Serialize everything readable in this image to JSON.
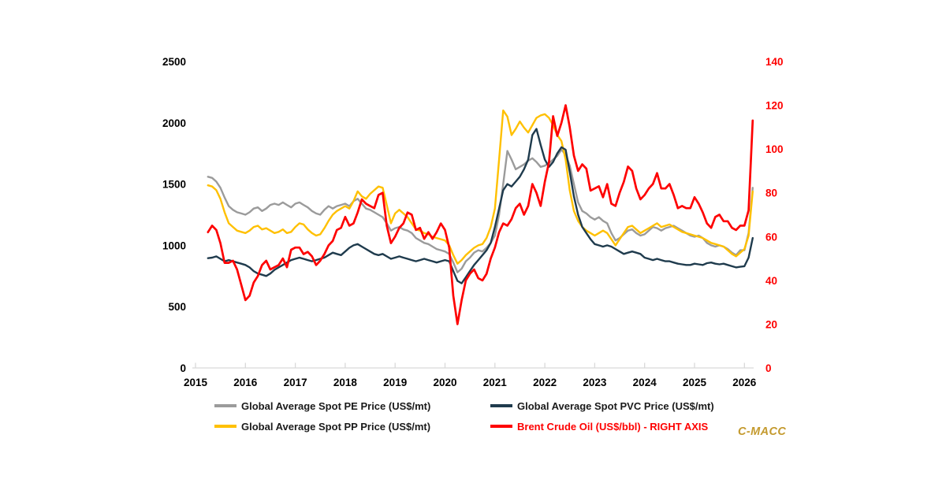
{
  "watermark": {
    "text": "C-MACC",
    "color": "#c49a2e"
  },
  "chart_data": {
    "type": "line",
    "title": "",
    "grid": false,
    "legend_position": "bottom",
    "x_start": 2015.25,
    "x_step": 0.083333,
    "x_ticks": [
      2015,
      2016,
      2017,
      2018,
      2019,
      2020,
      2021,
      2022,
      2023,
      2024,
      2025,
      2026
    ],
    "left_axis": {
      "ticks": [
        0,
        500,
        1000,
        1500,
        2000,
        2500
      ],
      "range": [
        0,
        2500
      ],
      "color": "#000000"
    },
    "right_axis": {
      "ticks": [
        0,
        20,
        40,
        60,
        80,
        100,
        120,
        140
      ],
      "range": [
        0,
        140
      ],
      "color": "#fe0000"
    },
    "axis_line_color": "#d9d9d9",
    "draw_order": [
      "pe",
      "pp",
      "pvc",
      "brent"
    ],
    "series": [
      {
        "id": "pe",
        "name": "Global Average Spot PE Price (US$/mt)",
        "axis": "left",
        "color": "#9b9b9b",
        "legend_text_color": "#1a1a1a",
        "values": [
          1560,
          1550,
          1520,
          1470,
          1390,
          1320,
          1290,
          1270,
          1260,
          1250,
          1270,
          1300,
          1310,
          1280,
          1300,
          1330,
          1340,
          1330,
          1350,
          1330,
          1310,
          1340,
          1350,
          1330,
          1310,
          1280,
          1260,
          1250,
          1290,
          1320,
          1300,
          1320,
          1330,
          1340,
          1320,
          1360,
          1380,
          1340,
          1300,
          1290,
          1270,
          1250,
          1230,
          1180,
          1120,
          1140,
          1150,
          1130,
          1120,
          1100,
          1060,
          1040,
          1020,
          1010,
          990,
          970,
          960,
          950,
          930,
          860,
          780,
          810,
          870,
          900,
          940,
          960,
          950,
          980,
          1020,
          1080,
          1250,
          1500,
          1770,
          1700,
          1620,
          1640,
          1660,
          1690,
          1710,
          1680,
          1640,
          1650,
          1670,
          1700,
          1730,
          1780,
          1740,
          1650,
          1500,
          1350,
          1280,
          1260,
          1230,
          1210,
          1230,
          1200,
          1180,
          1100,
          1040,
          1060,
          1090,
          1120,
          1130,
          1100,
          1080,
          1090,
          1120,
          1150,
          1140,
          1120,
          1140,
          1150,
          1160,
          1140,
          1120,
          1100,
          1080,
          1070,
          1080,
          1060,
          1020,
          1000,
          990,
          1000,
          990,
          970,
          940,
          920,
          960,
          960,
          1100,
          1470
        ]
      },
      {
        "id": "pvc",
        "name": "Global Average Spot PVC Price (US$/mt)",
        "axis": "left",
        "color": "#1f3b4d",
        "legend_text_color": "#1a1a1a",
        "values": [
          895,
          900,
          910,
          890,
          870,
          880,
          870,
          860,
          850,
          840,
          820,
          790,
          770,
          760,
          750,
          770,
          800,
          820,
          840,
          860,
          880,
          890,
          900,
          890,
          880,
          870,
          880,
          890,
          900,
          920,
          940,
          930,
          920,
          950,
          980,
          1000,
          1010,
          990,
          970,
          950,
          930,
          920,
          930,
          910,
          890,
          900,
          910,
          900,
          890,
          880,
          870,
          880,
          890,
          880,
          870,
          860,
          870,
          880,
          870,
          790,
          710,
          690,
          740,
          790,
          840,
          880,
          920,
          960,
          1020,
          1150,
          1300,
          1450,
          1500,
          1480,
          1520,
          1560,
          1620,
          1700,
          1900,
          1950,
          1820,
          1700,
          1640,
          1680,
          1750,
          1800,
          1780,
          1600,
          1400,
          1250,
          1150,
          1100,
          1050,
          1010,
          1000,
          990,
          1000,
          990,
          970,
          950,
          930,
          940,
          950,
          940,
          930,
          900,
          890,
          880,
          890,
          880,
          870,
          870,
          860,
          850,
          845,
          840,
          840,
          850,
          845,
          840,
          855,
          860,
          850,
          845,
          850,
          840,
          830,
          820,
          825,
          830,
          900,
          1060
        ]
      },
      {
        "id": "pp",
        "name": "Global Average Spot PP Price (US$/mt)",
        "axis": "left",
        "color": "#ffc000",
        "legend_text_color": "#1a1a1a",
        "values": [
          1490,
          1480,
          1450,
          1380,
          1270,
          1180,
          1150,
          1120,
          1110,
          1100,
          1120,
          1150,
          1160,
          1130,
          1140,
          1120,
          1100,
          1110,
          1130,
          1100,
          1110,
          1150,
          1180,
          1170,
          1130,
          1100,
          1080,
          1090,
          1140,
          1200,
          1250,
          1280,
          1300,
          1320,
          1300,
          1360,
          1440,
          1400,
          1380,
          1420,
          1450,
          1480,
          1470,
          1330,
          1180,
          1260,
          1290,
          1260,
          1230,
          1180,
          1130,
          1120,
          1100,
          1090,
          1070,
          1060,
          1050,
          1040,
          1000,
          920,
          850,
          880,
          920,
          950,
          980,
          1000,
          1010,
          1060,
          1150,
          1300,
          1700,
          2100,
          2050,
          1900,
          1950,
          2010,
          1960,
          1920,
          1980,
          2040,
          2060,
          2070,
          2040,
          1980,
          1900,
          1850,
          1700,
          1450,
          1280,
          1200,
          1150,
          1120,
          1100,
          1080,
          1100,
          1120,
          1100,
          1050,
          1000,
          1050,
          1100,
          1150,
          1160,
          1130,
          1100,
          1120,
          1140,
          1160,
          1180,
          1150,
          1160,
          1170,
          1150,
          1130,
          1110,
          1100,
          1090,
          1080,
          1070,
          1060,
          1040,
          1020,
          1010,
          1000,
          990,
          960,
          930,
          910,
          940,
          970,
          1080,
          1440
        ]
      },
      {
        "id": "brent",
        "name": "Brent Crude Oil (US$/bbl) - RIGHT AXIS",
        "axis": "right",
        "color": "#fe0000",
        "legend_text_color": "#fe0000",
        "values": [
          62,
          65,
          63,
          57,
          48,
          48,
          49,
          45,
          38,
          31,
          33,
          39,
          42,
          47,
          49,
          45,
          46,
          47,
          50,
          46,
          54,
          55,
          55,
          52,
          53,
          51,
          47,
          49,
          52,
          56,
          58,
          63,
          64,
          69,
          65,
          66,
          71,
          77,
          75,
          74,
          73,
          79,
          80,
          65,
          57,
          60,
          64,
          66,
          71,
          70,
          63,
          64,
          59,
          62,
          59,
          62,
          66,
          63,
          55,
          33,
          20,
          31,
          40,
          43,
          45,
          41,
          40,
          43,
          50,
          55,
          62,
          66,
          65,
          68,
          73,
          75,
          70,
          74,
          84,
          80,
          74,
          85,
          94,
          115,
          106,
          112,
          120,
          110,
          97,
          90,
          93,
          91,
          81,
          82,
          83,
          78,
          84,
          75,
          74,
          80,
          85,
          92,
          90,
          82,
          77,
          79,
          82,
          84,
          89,
          82,
          82,
          84,
          79,
          73,
          74,
          73,
          73,
          78,
          75,
          71,
          66,
          64,
          69,
          70,
          67,
          67,
          64,
          63,
          65,
          65,
          72,
          113
        ]
      }
    ]
  }
}
